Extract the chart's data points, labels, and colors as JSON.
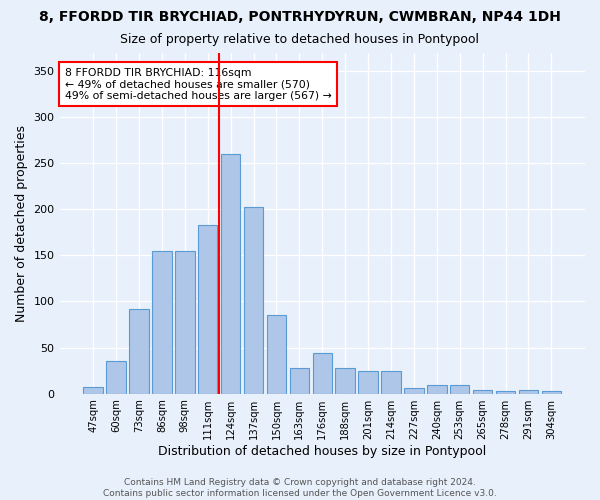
{
  "title": "8, FFORDD TIR BRYCHIAD, PONTRHYDYRUN, CWMBRAN, NP44 1DH",
  "subtitle": "Size of property relative to detached houses in Pontypool",
  "xlabel": "Distribution of detached houses by size in Pontypool",
  "ylabel": "Number of detached properties",
  "bin_labels": [
    "47sqm",
    "60sqm",
    "73sqm",
    "86sqm",
    "98sqm",
    "111sqm",
    "124sqm",
    "137sqm",
    "150sqm",
    "163sqm",
    "176sqm",
    "188sqm",
    "201sqm",
    "214sqm",
    "227sqm",
    "240sqm",
    "253sqm",
    "265sqm",
    "278sqm",
    "291sqm",
    "304sqm"
  ],
  "bar_heights": [
    7,
    35,
    92,
    155,
    155,
    183,
    260,
    202,
    85,
    28,
    44,
    28,
    25,
    25,
    6,
    9,
    9,
    4,
    3,
    4,
    3
  ],
  "bar_color": "#aec6e8",
  "bar_edge_color": "#5b9bd5",
  "vline_x": 5.5,
  "vline_color": "red",
  "annotation_text": "8 FFORDD TIR BRYCHIAD: 116sqm\n← 49% of detached houses are smaller (570)\n49% of semi-detached houses are larger (567) →",
  "annotation_box_color": "white",
  "annotation_box_edge_color": "red",
  "ylim": [
    0,
    370
  ],
  "yticks": [
    0,
    50,
    100,
    150,
    200,
    250,
    300,
    350
  ],
  "background_color": "#e8f0fb",
  "grid_color": "white",
  "footer": "Contains HM Land Registry data © Crown copyright and database right 2024.\nContains public sector information licensed under the Open Government Licence v3.0."
}
